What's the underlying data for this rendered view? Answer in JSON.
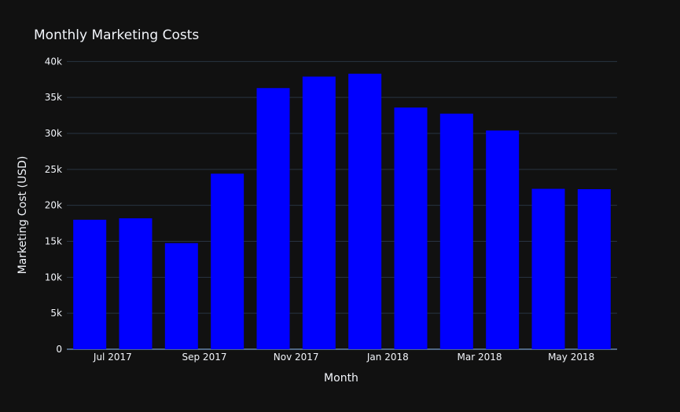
{
  "chart_data": {
    "type": "bar",
    "title": "Monthly Marketing Costs",
    "xlabel": "Month",
    "ylabel": "Marketing Cost (USD)",
    "categories": [
      "2017-06",
      "2017-07",
      "2017-08",
      "2017-09",
      "2017-10",
      "2017-11",
      "2017-12",
      "2018-01",
      "2018-02",
      "2018-03",
      "2018-04",
      "2018-05"
    ],
    "values": [
      18000,
      18200,
      14750,
      24400,
      36300,
      37900,
      38300,
      33600,
      32750,
      30400,
      22300,
      22250
    ],
    "ylim": [
      0,
      42000
    ],
    "yticks": [
      0,
      5000,
      10000,
      15000,
      20000,
      25000,
      30000,
      35000,
      40000
    ],
    "ytick_labels": [
      "0",
      "5k",
      "10k",
      "15k",
      "20k",
      "25k",
      "30k",
      "35k",
      "40k"
    ],
    "xtick_labels": [
      {
        "at": "2017-07",
        "label": "Jul 2017"
      },
      {
        "at": "2017-09",
        "label": "Sep 2017"
      },
      {
        "at": "2017-11",
        "label": "Nov 2017"
      },
      {
        "at": "2018-01",
        "label": "Jan 2018"
      },
      {
        "at": "2018-03",
        "label": "Mar 2018"
      },
      {
        "at": "2018-05",
        "label": "May 2018"
      }
    ],
    "grid": true,
    "legend": "none",
    "colors": {
      "background": "#111111",
      "bar": "#0000ff",
      "grid": "#283442",
      "text": "#f2f5fa"
    }
  }
}
